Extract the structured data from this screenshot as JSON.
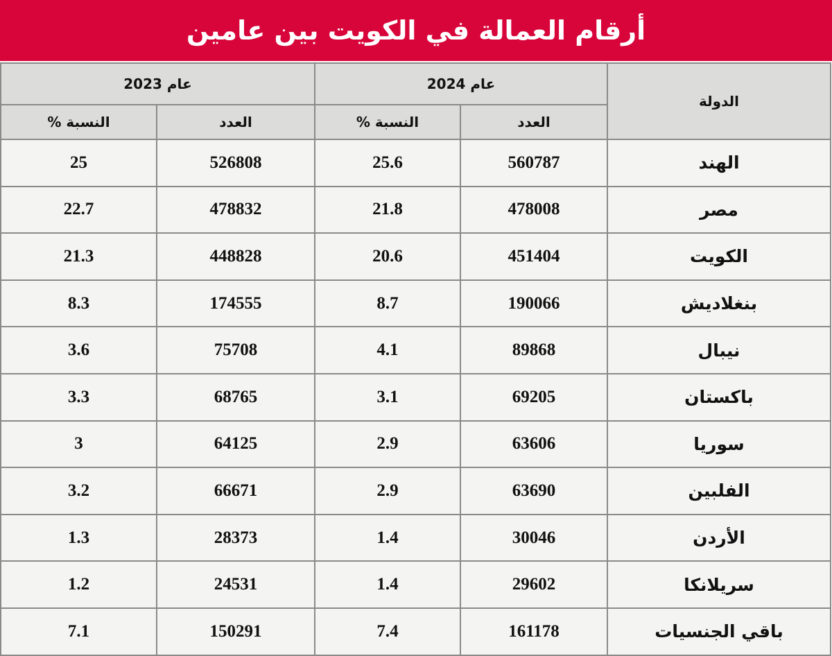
{
  "title": "أرقام العمالة في الكويت بين عامين",
  "headers": {
    "country": "الدولة",
    "year_2024": "عام 2024",
    "year_2023": "عام 2023",
    "count": "العدد",
    "percent": "النسبة %"
  },
  "rows": [
    {
      "country": "الهند",
      "count_2024": "560787",
      "pct_2024": "25.6",
      "count_2023": "526808",
      "pct_2023": "25"
    },
    {
      "country": "مصر",
      "count_2024": "478008",
      "pct_2024": "21.8",
      "count_2023": "478832",
      "pct_2023": "22.7"
    },
    {
      "country": "الكويت",
      "count_2024": "451404",
      "pct_2024": "20.6",
      "count_2023": "448828",
      "pct_2023": "21.3"
    },
    {
      "country": "بنغلاديش",
      "count_2024": "190066",
      "pct_2024": "8.7",
      "count_2023": "174555",
      "pct_2023": "8.3"
    },
    {
      "country": "نيبال",
      "count_2024": "89868",
      "pct_2024": "4.1",
      "count_2023": "75708",
      "pct_2023": "3.6"
    },
    {
      "country": "باكستان",
      "count_2024": "69205",
      "pct_2024": "3.1",
      "count_2023": "68765",
      "pct_2023": "3.3"
    },
    {
      "country": "سوريا",
      "count_2024": "63606",
      "pct_2024": "2.9",
      "count_2023": "64125",
      "pct_2023": "3"
    },
    {
      "country": "الفلبين",
      "count_2024": "63690",
      "pct_2024": "2.9",
      "count_2023": "66671",
      "pct_2023": "3.2"
    },
    {
      "country": "الأردن",
      "count_2024": "30046",
      "pct_2024": "1.4",
      "count_2023": "28373",
      "pct_2023": "1.3"
    },
    {
      "country": "سريلانكا",
      "count_2024": "29602",
      "pct_2024": "1.4",
      "count_2023": "24531",
      "pct_2023": "1.2"
    },
    {
      "country": "باقي الجنسيات",
      "count_2024": "161178",
      "pct_2024": "7.4",
      "count_2023": "150291",
      "pct_2023": "7.1"
    }
  ],
  "colors": {
    "title_bg": "#d8053b",
    "header_bg": "#dcdcdb",
    "cell_bg": "#f4f4f3"
  }
}
